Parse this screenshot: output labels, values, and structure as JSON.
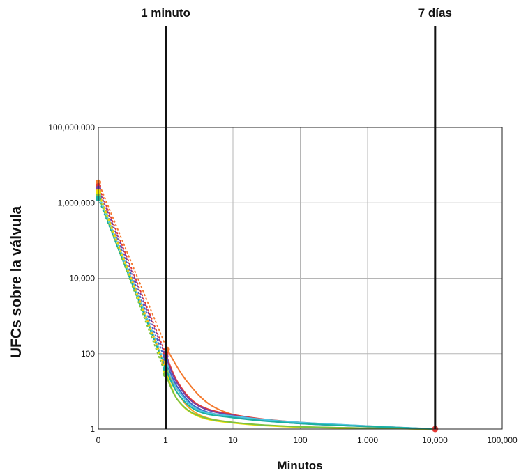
{
  "chart_data": {
    "type": "line",
    "xlabel": "Minutos",
    "ylabel": "UFCs sobre la válvula",
    "x_scale": "log",
    "y_scale": "log",
    "x_ticks": [
      {
        "value": 0.1,
        "label": "0"
      },
      {
        "value": 1,
        "label": "1"
      },
      {
        "value": 10,
        "label": "10"
      },
      {
        "value": 100,
        "label": "100"
      },
      {
        "value": 1000,
        "label": "1,000"
      },
      {
        "value": 10000,
        "label": "10,000"
      },
      {
        "value": 100000,
        "label": "100,000"
      }
    ],
    "y_ticks": [
      {
        "value": 1,
        "label": "1"
      },
      {
        "value": 100,
        "label": "100"
      },
      {
        "value": 10000,
        "label": "10,000"
      },
      {
        "value": 1000000,
        "label": "1,000,000"
      },
      {
        "value": 100000000,
        "label": "100,000,000"
      }
    ],
    "xlim": [
      0.1,
      100000
    ],
    "ylim": [
      1,
      100000000
    ],
    "grid": true,
    "annotations": [
      {
        "label": "1 minuto",
        "x": 1
      },
      {
        "label": "7 días",
        "x": 10080
      }
    ],
    "end_point": {
      "x": 10080,
      "y": 1,
      "color": "#e53935"
    },
    "series": [
      {
        "color": "#f47a2e",
        "start": {
          "x": 0.1,
          "y": 3500000
        },
        "after": {
          "x": 1.05,
          "y": 130
        },
        "tail": [
          [
            1.05,
            130
          ],
          [
            2,
            20
          ],
          [
            5,
            4
          ],
          [
            20,
            1.9
          ],
          [
            200,
            1.35
          ],
          [
            10080,
            1
          ]
        ]
      },
      {
        "color": "#e53935",
        "start": {
          "x": 0.1,
          "y": 2800000
        },
        "after": {
          "x": 1.0,
          "y": 100
        },
        "tail": [
          [
            1.0,
            100
          ],
          [
            1.5,
            18
          ],
          [
            3,
            4.5
          ],
          [
            10,
            2.4
          ],
          [
            100,
            1.5
          ],
          [
            10080,
            1
          ]
        ]
      },
      {
        "color": "#7b3fa0",
        "start": {
          "x": 0.1,
          "y": 2400000
        },
        "after": {
          "x": 1.0,
          "y": 85
        },
        "tail": [
          [
            1.0,
            85
          ],
          [
            1.5,
            16
          ],
          [
            3,
            4.2
          ],
          [
            10,
            2.3
          ],
          [
            100,
            1.45
          ],
          [
            10080,
            1
          ]
        ]
      },
      {
        "color": "#3a66c8",
        "start": {
          "x": 0.1,
          "y": 2000000
        },
        "after": {
          "x": 1.0,
          "y": 65
        },
        "tail": [
          [
            1.0,
            65
          ],
          [
            1.5,
            13
          ],
          [
            3,
            3.6
          ],
          [
            10,
            2.1
          ],
          [
            100,
            1.4
          ],
          [
            10080,
            1
          ]
        ]
      },
      {
        "color": "#4fc3e0",
        "start": {
          "x": 0.1,
          "y": 1700000
        },
        "after": {
          "x": 1.02,
          "y": 45
        },
        "tail": [
          [
            1.02,
            45
          ],
          [
            1.5,
            11
          ],
          [
            3,
            3.3
          ],
          [
            10,
            2.2
          ],
          [
            100,
            1.5
          ],
          [
            10080,
            1
          ]
        ]
      },
      {
        "color": "#f5a623",
        "start": {
          "x": 0.1,
          "y": 2000000
        },
        "after": {
          "x": 0.95,
          "y": 55
        },
        "tail": [
          [
            0.95,
            55
          ],
          [
            1.5,
            9
          ],
          [
            3,
            2.5
          ],
          [
            10,
            1.5
          ],
          [
            100,
            1.15
          ],
          [
            10080,
            1
          ]
        ]
      },
      {
        "color": "#f0e000",
        "start": {
          "x": 0.1,
          "y": 1900000
        },
        "after": {
          "x": 1.0,
          "y": 35
        },
        "tail": [
          [
            1.0,
            35
          ],
          [
            1.5,
            6
          ],
          [
            3,
            2.2
          ],
          [
            10,
            1.45
          ],
          [
            100,
            1.12
          ],
          [
            10080,
            1
          ]
        ]
      },
      {
        "color": "#7cc242",
        "start": {
          "x": 0.1,
          "y": 1500000
        },
        "after": {
          "x": 1.0,
          "y": 28
        },
        "tail": [
          [
            1.0,
            28
          ],
          [
            1.5,
            6
          ],
          [
            3,
            2.3
          ],
          [
            10,
            1.5
          ],
          [
            100,
            1.15
          ],
          [
            10080,
            1
          ]
        ]
      },
      {
        "color": "#1ab0a0",
        "start": {
          "x": 0.1,
          "y": 1300000
        },
        "after": {
          "x": 1.0,
          "y": 40
        },
        "tail": [
          [
            1.0,
            40
          ],
          [
            1.5,
            9
          ],
          [
            3,
            3.0
          ],
          [
            10,
            2.0
          ],
          [
            100,
            1.4
          ],
          [
            10080,
            1
          ]
        ]
      }
    ]
  }
}
